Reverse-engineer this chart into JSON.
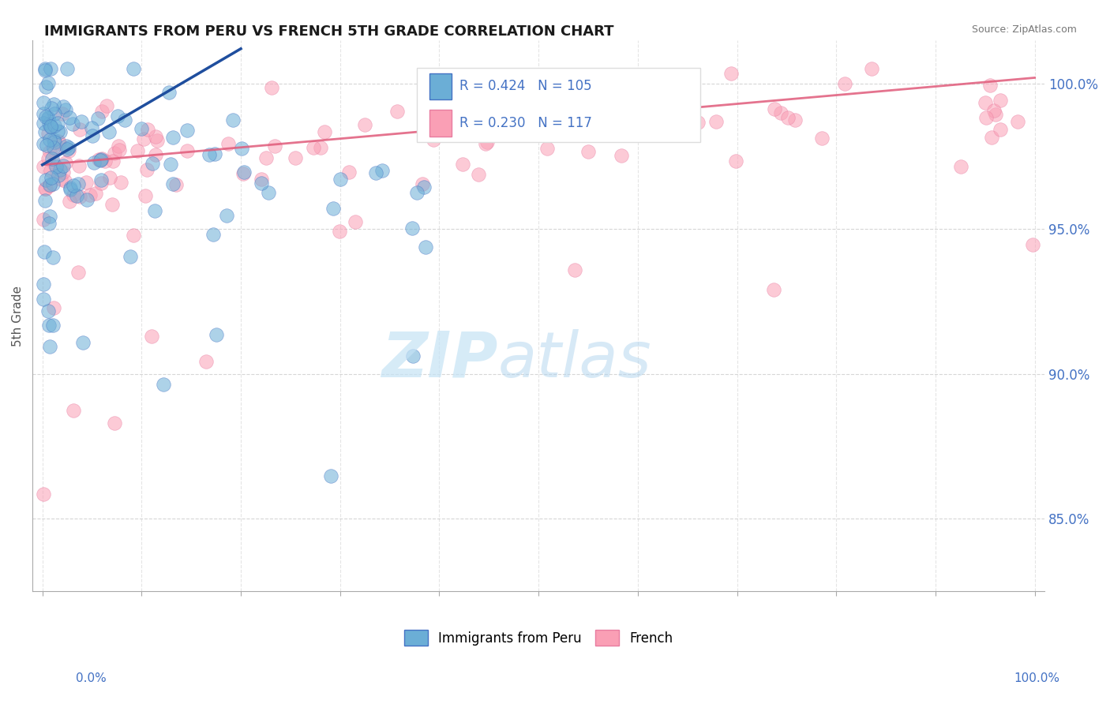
{
  "title": "IMMIGRANTS FROM PERU VS FRENCH 5TH GRADE CORRELATION CHART",
  "source": "Source: ZipAtlas.com",
  "ylabel": "5th Grade",
  "legend_blue_R": "0.424",
  "legend_blue_N": "105",
  "legend_pink_R": "0.230",
  "legend_pink_N": "117",
  "blue_color": "#6baed6",
  "pink_color": "#fa9fb5",
  "blue_edge_color": "#4472C4",
  "pink_edge_color": "#e87ca0",
  "blue_line_color": "#1f4e9e",
  "pink_line_color": "#e05a7a",
  "tick_color": "#4472C4",
  "title_color": "#1a1a1a",
  "source_color": "#777777",
  "ylabel_color": "#555555",
  "watermark_zip_color": "#c5e3f5",
  "watermark_atlas_color": "#b0d4ee",
  "yticks": [
    85.0,
    90.0,
    95.0,
    100.0
  ],
  "ytick_labels": [
    "85.0%",
    "90.0%",
    "95.0%",
    "100.0%"
  ],
  "ylim_min": 82.5,
  "ylim_max": 101.5,
  "xlim_min": -1.0,
  "xlim_max": 101.0,
  "blue_trend_x": [
    0.0,
    20.0
  ],
  "blue_trend_y": [
    97.2,
    101.2
  ],
  "pink_trend_x": [
    0.0,
    100.0
  ],
  "pink_trend_y": [
    97.2,
    100.2
  ],
  "blue_seed": 77,
  "pink_seed": 88
}
